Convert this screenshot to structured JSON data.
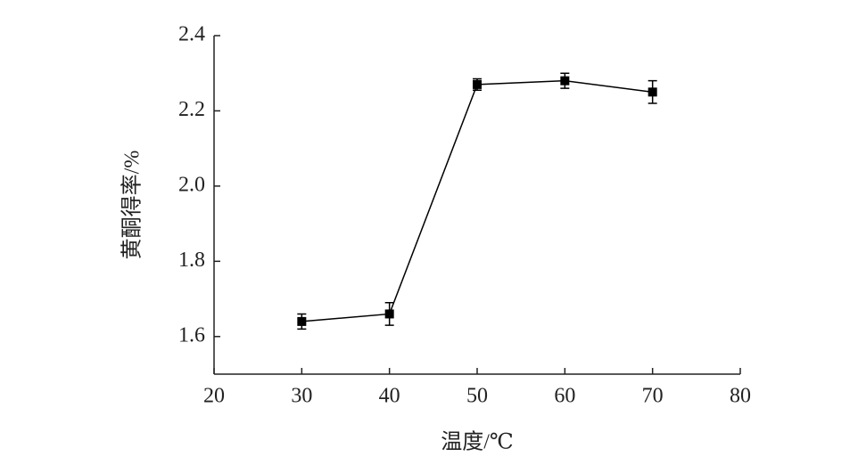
{
  "chart_data": {
    "type": "line",
    "x_label": "温度/℃",
    "y_label": "黄酮得率/%",
    "x": [
      30,
      40,
      50,
      60,
      70
    ],
    "series": [
      {
        "color": "#000000",
        "values": [
          1.64,
          1.66,
          2.27,
          2.28,
          2.25
        ],
        "errors": [
          0.02,
          0.03,
          0.015,
          0.02,
          0.03
        ]
      }
    ],
    "xlim": [
      20,
      80
    ],
    "xticks": [
      20,
      30,
      40,
      50,
      60,
      70,
      80
    ],
    "ylim": [
      1.5,
      2.4
    ],
    "yticks": [
      1.6,
      1.8,
      {
        "value": 2,
        "label": "2.0"
      },
      2.2,
      2.4
    ],
    "grid": false
  }
}
